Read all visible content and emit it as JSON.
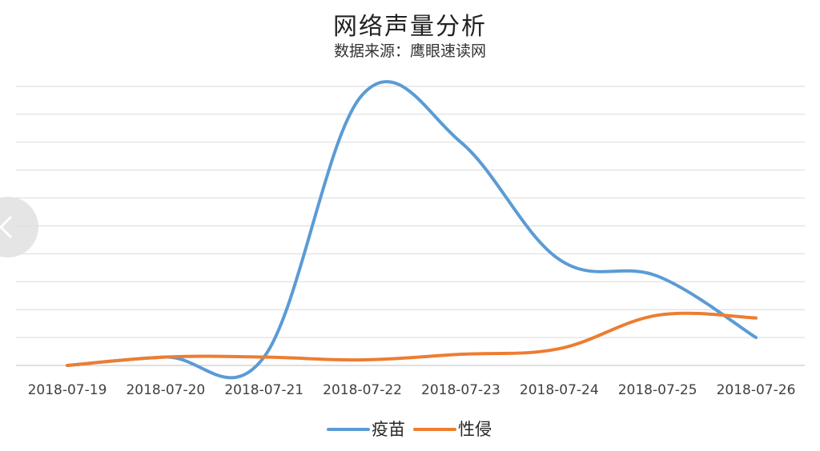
{
  "chart_data": {
    "type": "line",
    "title": "网络声量分析",
    "subtitle": "数据来源：鹰眼速读网",
    "x": [
      "2018-07-19",
      "2018-07-20",
      "2018-07-21",
      "2018-07-22",
      "2018-07-23",
      "2018-07-24",
      "2018-07-25",
      "2018-07-26"
    ],
    "ylim": [
      0,
      100
    ],
    "grid": true,
    "legend_position": "bottom",
    "series": [
      {
        "name": "疫苗",
        "color": "#5b9bd5",
        "values": [
          0,
          3,
          3,
          97,
          80,
          38,
          32,
          10
        ]
      },
      {
        "name": "性侵",
        "color": "#ed7d31",
        "values": [
          0,
          3,
          3,
          2,
          4,
          6,
          18,
          17
        ]
      }
    ]
  },
  "nav": {
    "prev_icon": "chevron-left-icon"
  }
}
